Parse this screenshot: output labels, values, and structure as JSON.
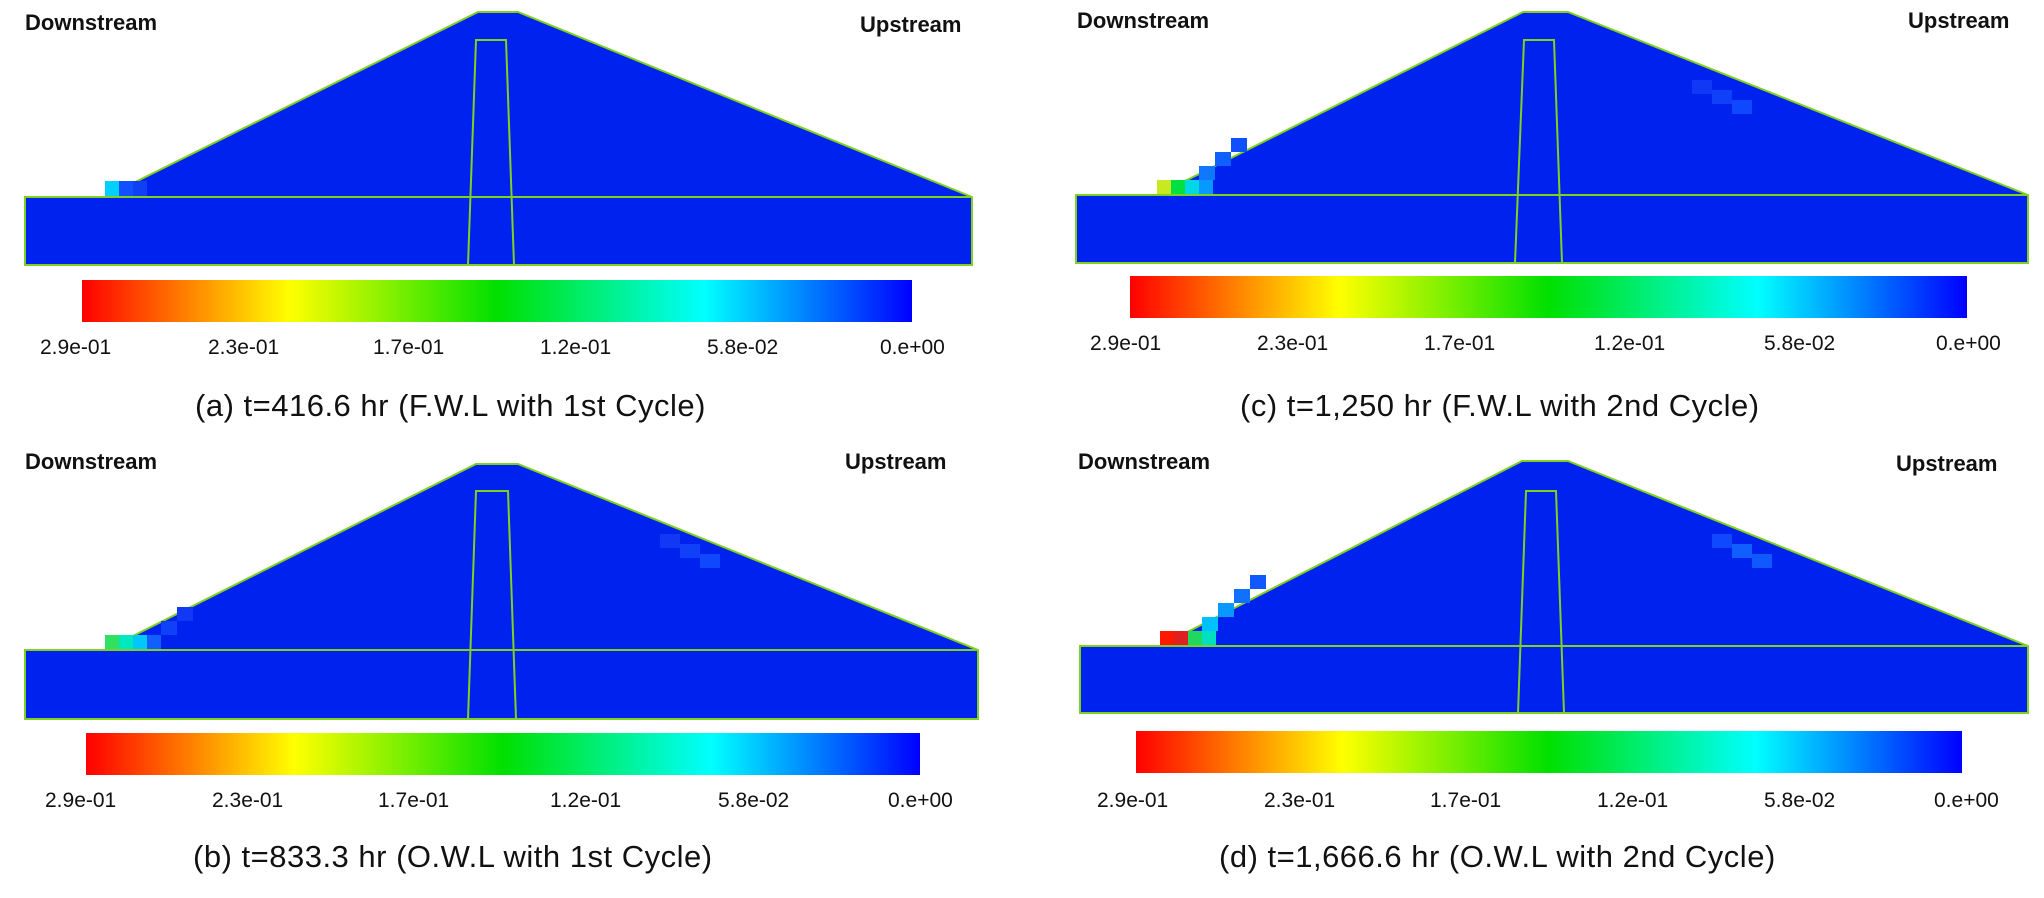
{
  "labels": {
    "downstream": "Downstream",
    "upstream": "Upstream"
  },
  "colorbar": {
    "ticks": [
      "2.9e-01",
      "2.3e-01",
      "1.7e-01",
      "1.2e-01",
      "5.8e-02",
      "0.e+00"
    ],
    "colors": [
      "#ff0000",
      "#ffff00",
      "#00e000",
      "#00ffff",
      "#0000ff"
    ]
  },
  "colors": {
    "body": "#0022ee",
    "outline": "#80d020"
  },
  "panels": [
    {
      "id": "a",
      "caption": "(a) t=416.6 hr (F.W.L with 1st Cycle)",
      "time_hr": 416.6,
      "water_level": "F.W.L",
      "cycle": 1
    },
    {
      "id": "b",
      "caption": "(b) t=833.3 hr (O.W.L with 1st Cycle)",
      "time_hr": 833.3,
      "water_level": "O.W.L",
      "cycle": 1
    },
    {
      "id": "c",
      "caption": "(c) t=1,250 hr (F.W.L with 2nd Cycle)",
      "time_hr": 1250,
      "water_level": "F.W.L",
      "cycle": 2
    },
    {
      "id": "d",
      "caption": "(d) t=1,666.6 hr (O.W.L with 2nd Cycle)",
      "time_hr": 1666.6,
      "water_level": "O.W.L",
      "cycle": 2
    }
  ]
}
